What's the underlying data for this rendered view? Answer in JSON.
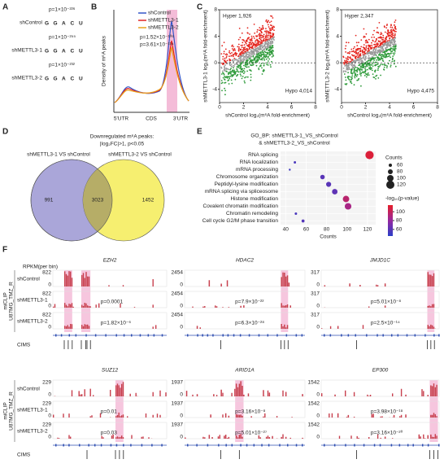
{
  "panel_labels": [
    "A",
    "B",
    "C",
    "D",
    "E",
    "F"
  ],
  "motif": {
    "rows": [
      {
        "label": "shControl",
        "p": "p=1×10⁻²²⁶"
      },
      {
        "label": "shMETTL3-1",
        "p": "p=1×10⁻²⁵⁵"
      },
      {
        "label": "shMETTL3-2",
        "p": "p=1×10⁻²³²"
      }
    ],
    "letters": [
      "G",
      "G",
      "A",
      "C",
      "U"
    ]
  },
  "density": {
    "ylabel": "Density of m⁶A peaks",
    "legend": [
      "shControl",
      "shMETTL3-1",
      "shMETTL3-2"
    ],
    "pvalues": [
      "p=1.52×10⁻¹⁰⁶",
      "p=3.61×10⁻¹¹⁴"
    ],
    "regions": [
      "5'UTR",
      "CDS",
      "3'UTR"
    ]
  },
  "scatter": {
    "xlabel": "shControl log₂(m⁶A fold-enrichment)",
    "xlim": [
      0,
      8
    ],
    "xticks": [
      0,
      2,
      4,
      6,
      8
    ],
    "ylim": [
      -6,
      8
    ],
    "yticks": [
      -4,
      0,
      4,
      8
    ],
    "plots": [
      {
        "ylabel": "shMETTL3-1 log₂(m⁶A fold-enrichment)",
        "hyper": "Hyper 1,926",
        "hypo": "Hypo 4,014"
      },
      {
        "ylabel": "shMETTL3-2 log₂(m⁶A fold-enrichment)",
        "hyper": "Hyper 2,347",
        "hypo": "Hypo 4,475"
      }
    ]
  },
  "venn": {
    "title": [
      "Downregulated m⁶A peaks:",
      "|log₂FC|>1, p<0.05"
    ],
    "sets": [
      "shMETTL3-1 VS shControl",
      "shMETTL3-2 VS shControl"
    ],
    "counts": [
      991,
      3023,
      1452
    ]
  },
  "chart_data": {
    "type": "dot",
    "title": [
      "GO_BP: shMETTL3-1_VS_shControl",
      "& shMETTL3-2_VS_shControl"
    ],
    "categories": [
      "RNA splicing",
      "RNA localization",
      "mRNA processing",
      "Chromosome organization",
      "Peptidyl-lysine modification",
      "mRNA splicing via spliceosome",
      "Histone modification",
      "Covalent chromatin modification",
      "Chromatin remodeling",
      "Cell cycle G2/M phase transition"
    ],
    "values": [
      122,
      49,
      44,
      76,
      82,
      88,
      99,
      101,
      50,
      57
    ],
    "color_values": [
      110,
      55,
      52,
      60,
      60,
      62,
      95,
      88,
      55,
      58
    ],
    "xlabel": "Counts",
    "xlim": [
      35,
      128
    ],
    "xticks": [
      40,
      60,
      80,
      100,
      120
    ],
    "size_title": "Counts",
    "size_ticks": [
      60,
      80,
      100,
      120
    ],
    "color_title": "-log₁₀(p-value)",
    "color_ticks": [
      100,
      80,
      60
    ],
    "color_lim": [
      45,
      115
    ]
  },
  "tracks": {
    "ylabel": [
      "miCLIP",
      "U87MG_TMZ_R"
    ],
    "unit": "RPKM(per bin)",
    "rows": [
      "shControl",
      "shMETTL3-1",
      "shMETTL3-2"
    ],
    "cims": "CIMS",
    "zero": 0,
    "genes": [
      {
        "name": "EZH2",
        "scale": 822,
        "p": [
          "p=0.0001",
          "p=1.82×10⁻⁶"
        ]
      },
      {
        "name": "HDAC2",
        "scale": 2454,
        "p": [
          "p=7.9×10⁻²²",
          "p=6.3×10⁻²⁸"
        ]
      },
      {
        "name": "JMJD1C",
        "scale": 317,
        "p": [
          "p=5.01×10⁻⁸",
          "p=2.5×10⁻¹⁴"
        ]
      },
      {
        "name": "SUZ12",
        "scale": 229,
        "p": [
          "p=0.01",
          "p=0.03"
        ]
      },
      {
        "name": "ARID1A",
        "scale": 1937,
        "p": [
          "p=3.16×10⁻⁸",
          "p=5.01×10⁻²⁷"
        ]
      },
      {
        "name": "EP300",
        "scale": 1542,
        "p": [
          "p=3.98×10⁻¹⁸",
          "p=3.16×10⁻²⁰"
        ]
      }
    ]
  }
}
